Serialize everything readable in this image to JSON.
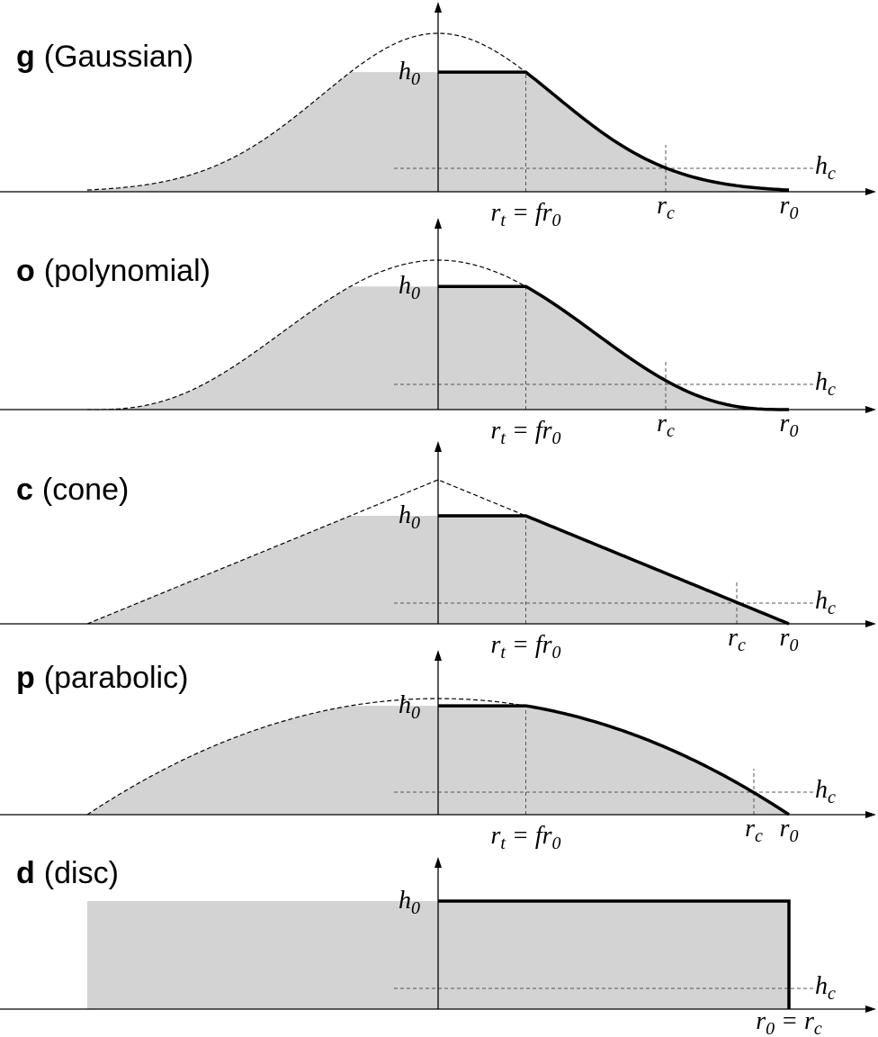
{
  "panels": [
    {
      "letter": "g",
      "name": "(Gaussian)",
      "labels": {
        "h0": [
          {
            "text": "h",
            "sub": "0"
          }
        ],
        "rt": [
          {
            "text": "r",
            "sub": "t"
          },
          {
            "text": " = fr",
            "sub": "0"
          }
        ],
        "rc": [
          {
            "text": "r",
            "sub": "c"
          }
        ],
        "r0": [
          {
            "text": "r",
            "sub": "0"
          }
        ],
        "hc": [
          {
            "text": "h",
            "sub": "c"
          }
        ]
      }
    },
    {
      "letter": "o",
      "name": "(polynomial)",
      "labels": {
        "h0": [
          {
            "text": "h",
            "sub": "0"
          }
        ],
        "rt": [
          {
            "text": "r",
            "sub": "t"
          },
          {
            "text": " = fr",
            "sub": "0"
          }
        ],
        "rc": [
          {
            "text": "r",
            "sub": "c"
          }
        ],
        "r0": [
          {
            "text": "r",
            "sub": "0"
          }
        ],
        "hc": [
          {
            "text": "h",
            "sub": "c"
          }
        ]
      }
    },
    {
      "letter": "c",
      "name": "(cone)",
      "labels": {
        "h0": [
          {
            "text": "h",
            "sub": "0"
          }
        ],
        "rt": [
          {
            "text": "r",
            "sub": "t"
          },
          {
            "text": " = fr",
            "sub": "0"
          }
        ],
        "rc": [
          {
            "text": "r",
            "sub": "c"
          }
        ],
        "r0": [
          {
            "text": "r",
            "sub": "0"
          }
        ],
        "hc": [
          {
            "text": "h",
            "sub": "c"
          }
        ]
      }
    },
    {
      "letter": "p",
      "name": "(parabolic)",
      "labels": {
        "h0": [
          {
            "text": "h",
            "sub": "0"
          }
        ],
        "rt": [
          {
            "text": "r",
            "sub": "t"
          },
          {
            "text": " = fr",
            "sub": "0"
          }
        ],
        "rc": [
          {
            "text": "r",
            "sub": "c"
          }
        ],
        "r0": [
          {
            "text": "r",
            "sub": "0"
          }
        ],
        "hc": [
          {
            "text": "h",
            "sub": "c"
          }
        ]
      }
    },
    {
      "letter": "d",
      "name": "(disc)",
      "labels": {
        "h0": [
          {
            "text": "h",
            "sub": "0"
          }
        ],
        "hc": [
          {
            "text": "h",
            "sub": "c"
          }
        ],
        "r0rc": [
          {
            "text": "r",
            "sub": "0"
          },
          {
            "text": " = r",
            "sub": "c"
          }
        ]
      }
    }
  ]
}
